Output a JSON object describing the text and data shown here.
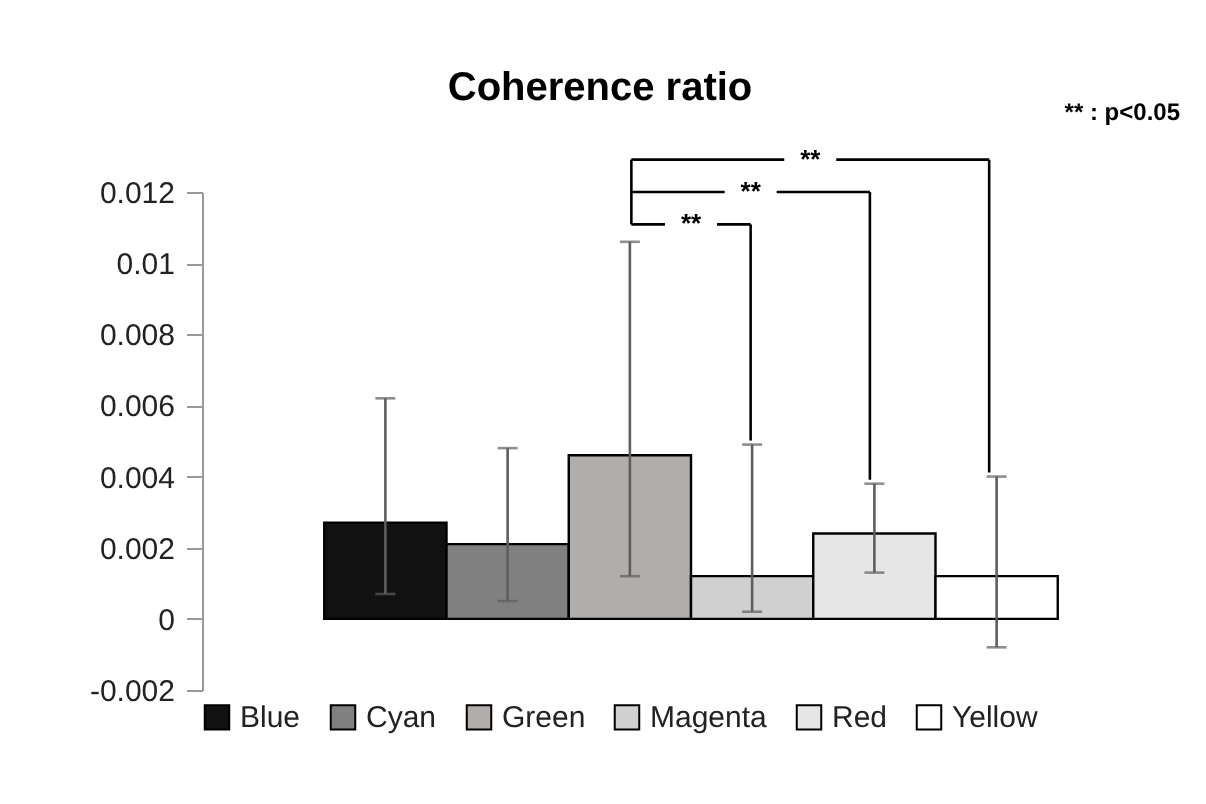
{
  "chart_data": {
    "type": "bar",
    "title": "Coherence ratio",
    "categories": [
      null
    ],
    "series": [
      {
        "name": "Blue",
        "color": "#111111",
        "values": [
          0.0027
        ],
        "errors": [
          [
            0.0007,
            0.0062
          ]
        ]
      },
      {
        "name": "Cyan",
        "color": "#808080",
        "values": [
          0.0021
        ],
        "errors": [
          [
            0.0005,
            0.0048
          ]
        ]
      },
      {
        "name": "Green",
        "color": "#b0adab",
        "values": [
          0.0046
        ],
        "errors": [
          [
            0.0012,
            0.0106
          ]
        ]
      },
      {
        "name": "Magenta",
        "color": "#d0d0d0",
        "values": [
          0.0012
        ],
        "errors": [
          [
            0.0002,
            0.0049
          ]
        ]
      },
      {
        "name": "Red",
        "color": "#e6e6e6",
        "values": [
          0.0024
        ],
        "errors": [
          [
            0.0013,
            0.0038
          ]
        ]
      },
      {
        "name": "Yellow",
        "color": "#ffffff",
        "values": [
          0.0012
        ],
        "errors": [
          [
            -0.0008,
            0.004
          ]
        ]
      }
    ],
    "ylim": [
      -0.002,
      0.012
    ],
    "yticks": [
      -0.002,
      0,
      0.002,
      0.004,
      0.006,
      0.008,
      0.01,
      0.012
    ],
    "grid": false,
    "legend": "bottom",
    "annotations": [
      "**",
      "**",
      "**",
      "** : p<0.05"
    ]
  }
}
